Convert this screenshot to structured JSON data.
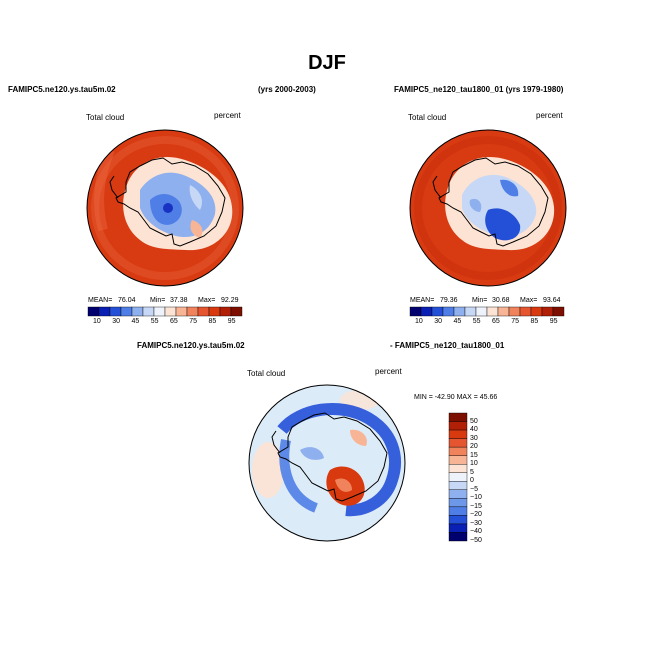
{
  "title": "DJF",
  "colors": {
    "ocean_top": "#d83a12",
    "ice_outline": "#000000",
    "diff_background": "#dcebf8"
  },
  "panels": [
    {
      "case_name": "FAMIPC5.ne120.ys.tau5m.02",
      "years": "(yrs 2000-2003)",
      "variable": "Total cloud",
      "units": "percent",
      "mean_label": "MEAN=",
      "mean": "76.04",
      "min_label": "Min=",
      "min": "37.38",
      "max_label": "Max=",
      "max": "92.29"
    },
    {
      "case_name": "FAMIPC5_ne120_tau1800_01 (yrs 1979-1980)",
      "years": "",
      "variable": "Total cloud",
      "units": "percent",
      "mean_label": "MEAN=",
      "mean": "79.36",
      "min_label": "Min=",
      "min": "30.68",
      "max_label": "Max=",
      "max": "93.64"
    }
  ],
  "diff_panel": {
    "case_a": "FAMIPC5.ne120.ys.tau5m.02",
    "case_b": "- FAMIPC5_ne120_tau1800_01",
    "variable": "Total cloud",
    "units": "percent",
    "stats": "MIN = -42.90  MAX =  45.66"
  },
  "chart_data": [
    {
      "type": "heatmap",
      "projection": "polar-stereographic-south",
      "title": "FAMIPC5.ne120.ys.tau5m.02 (yrs 2000-2003)",
      "field": "Total cloud",
      "units": "percent",
      "mean": 76.04,
      "min": 37.38,
      "max": 92.29,
      "colorbar": {
        "orientation": "horizontal",
        "levels": [
          10,
          30,
          45,
          55,
          65,
          75,
          85,
          95
        ],
        "tick_labels": [
          "10",
          "30",
          "45",
          "55",
          "65",
          "75",
          "85",
          "95"
        ],
        "colors": [
          "#00006e",
          "#0a1fb4",
          "#2450d8",
          "#4f7fe6",
          "#8fb0ee",
          "#c6d8f5",
          "#eef3fb",
          "#fde3d3",
          "#f8b596",
          "#f1835c",
          "#e55630",
          "#d8390f",
          "#b11f06",
          "#7d0f00"
        ]
      }
    },
    {
      "type": "heatmap",
      "projection": "polar-stereographic-south",
      "title": "FAMIPC5_ne120_tau1800_01 (yrs 1979-1980)",
      "field": "Total cloud",
      "units": "percent",
      "mean": 79.36,
      "min": 30.68,
      "max": 93.64,
      "colorbar": {
        "orientation": "horizontal",
        "levels": [
          10,
          30,
          45,
          55,
          65,
          75,
          85,
          95
        ],
        "tick_labels": [
          "10",
          "30",
          "45",
          "55",
          "65",
          "75",
          "85",
          "95"
        ],
        "colors": [
          "#00006e",
          "#0a1fb4",
          "#2450d8",
          "#4f7fe6",
          "#8fb0ee",
          "#c6d8f5",
          "#eef3fb",
          "#fde3d3",
          "#f8b596",
          "#f1835c",
          "#e55630",
          "#d8390f",
          "#b11f06",
          "#7d0f00"
        ]
      }
    },
    {
      "type": "heatmap",
      "projection": "polar-stereographic-south",
      "title": "FAMIPC5.ne120.ys.tau5m.02 - FAMIPC5_ne120_tau1800_01",
      "field": "Total cloud",
      "units": "percent",
      "min": -42.9,
      "max": 45.66,
      "colorbar": {
        "orientation": "vertical",
        "levels": [
          50,
          40,
          30,
          20,
          15,
          10,
          5,
          0,
          -5,
          -10,
          -15,
          -20,
          -30,
          -40,
          -50
        ],
        "tick_labels": [
          "50",
          "40",
          "30",
          "20",
          "15",
          "10",
          "5",
          "0",
          "−5",
          "−10",
          "−15",
          "−20",
          "−30",
          "−40",
          "−50"
        ],
        "colors": [
          "#7d0f00",
          "#b11f06",
          "#d8390f",
          "#e55630",
          "#f1835c",
          "#f8b596",
          "#fde3d3",
          "#eef3fb",
          "#c6d8f5",
          "#8fb0ee",
          "#6d98ea",
          "#4f7fe6",
          "#2450d8",
          "#0a1fb4",
          "#00006e"
        ]
      }
    }
  ]
}
